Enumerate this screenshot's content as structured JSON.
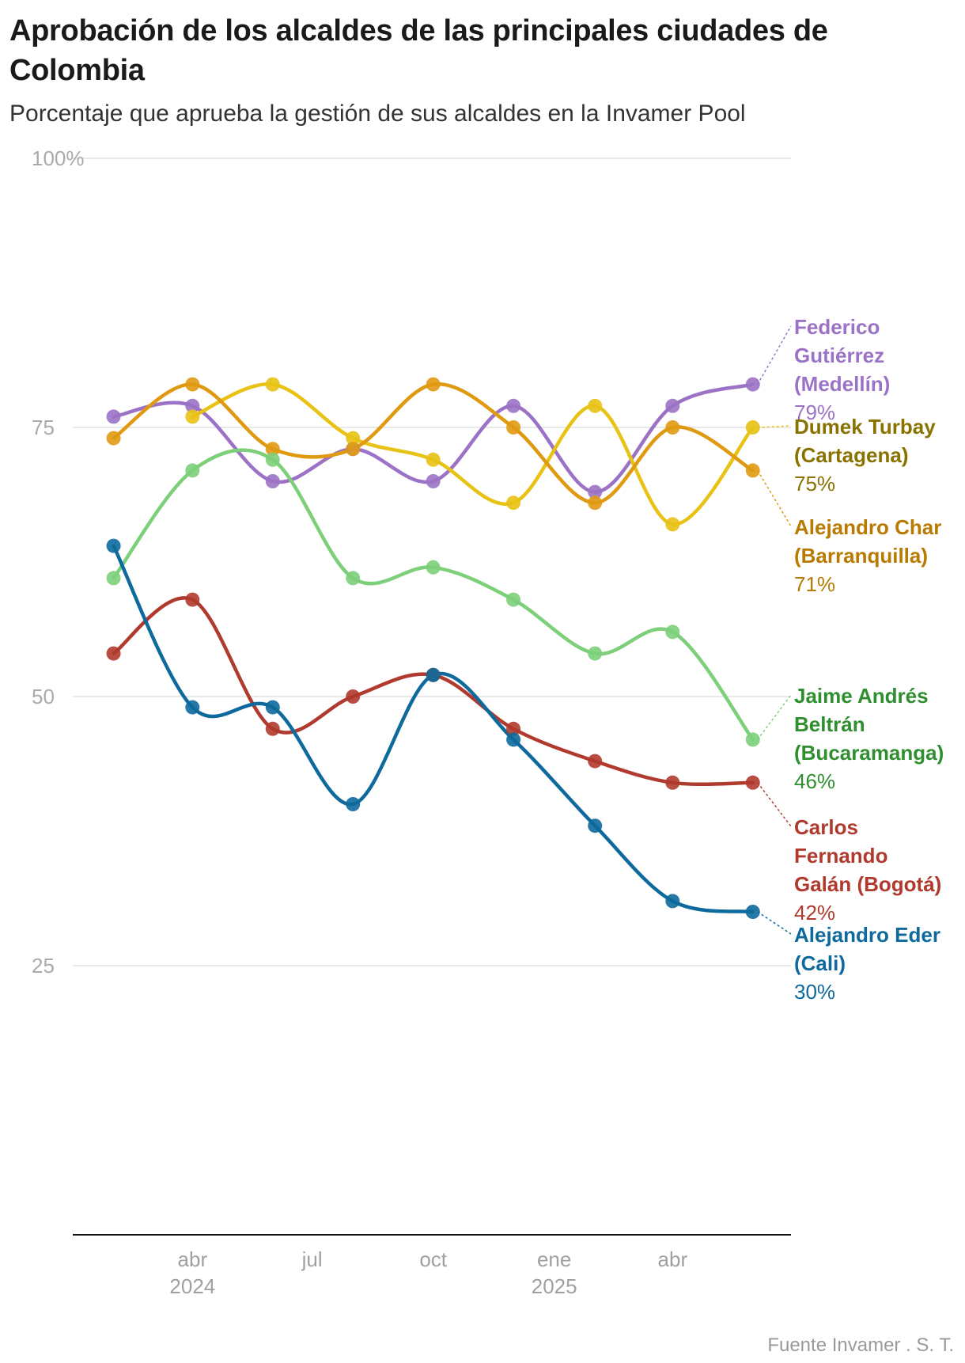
{
  "title": "Aprobación de los alcaldes de las principales ciudades de Colombia",
  "subtitle": "Porcentaje que aprueba la gestión de sus alcaldes en la Invamer Pool",
  "source": "Fuente Invamer . S. T.",
  "chart_data": {
    "type": "line",
    "ylim": [
      0,
      100
    ],
    "y_ticks": [
      {
        "value": 100,
        "label": "100%"
      },
      {
        "value": 75,
        "label": "75"
      },
      {
        "value": 50,
        "label": "50"
      },
      {
        "value": 25,
        "label": "25"
      }
    ],
    "x_ticks": [
      {
        "date": "2024-04-01",
        "label": "abr",
        "sublabel": "2024"
      },
      {
        "date": "2024-07-01",
        "label": "jul",
        "sublabel": ""
      },
      {
        "date": "2024-10-01",
        "label": "oct",
        "sublabel": ""
      },
      {
        "date": "2025-01-01",
        "label": "ene",
        "sublabel": "2025"
      },
      {
        "date": "2025-04-01",
        "label": "abr",
        "sublabel": ""
      }
    ],
    "xlim": [
      "2024-01-01",
      "2025-06-30"
    ],
    "x": [
      "2024-02-01",
      "2024-04-01",
      "2024-06-01",
      "2024-08-01",
      "2024-10-01",
      "2024-12-01",
      "2025-02-01",
      "2025-04-01",
      "2025-06-01"
    ],
    "series": [
      {
        "name": "Federico Gutiérrez (Medellín)",
        "label_lines": [
          "Federico",
          "Gutiérrez",
          "(Medellín)"
        ],
        "value_label": "79%",
        "color": "#9b72c5",
        "text_color": "#9b72c5",
        "values": [
          76,
          77,
          70,
          73,
          70,
          77,
          69,
          77,
          79
        ]
      },
      {
        "name": "Dumek Turbay (Cartagena)",
        "label_lines": [
          "Dumek Turbay",
          "(Cartagena)"
        ],
        "value_label": "75%",
        "color": "#e8c214",
        "text_color": "#8a7200",
        "values": [
          null,
          76,
          79,
          74,
          72,
          68,
          77,
          66,
          75
        ]
      },
      {
        "name": "Alejandro Char (Barranquilla)",
        "label_lines": [
          "Alejandro Char",
          "(Barranquilla)"
        ],
        "value_label": "71%",
        "color": "#e09a12",
        "text_color": "#b87a00",
        "values": [
          74,
          79,
          73,
          73,
          79,
          75,
          68,
          75,
          71
        ]
      },
      {
        "name": "Jaime Andrés Beltrán (Bucaramanga)",
        "label_lines": [
          "Jaime Andrés",
          "Beltrán",
          "(Bucaramanga)"
        ],
        "value_label": "46%",
        "color": "#7dcf7a",
        "text_color": "#2f8f2f",
        "values": [
          61,
          71,
          72,
          61,
          62,
          59,
          54,
          56,
          46
        ]
      },
      {
        "name": "Carlos Fernando Galán (Bogotá)",
        "label_lines": [
          "Carlos",
          "Fernando",
          "Galán (Bogotá)"
        ],
        "value_label": "42%",
        "color": "#b03a2e",
        "text_color": "#b03a2e",
        "values": [
          54,
          59,
          47,
          50,
          52,
          47,
          44,
          42,
          42
        ]
      },
      {
        "name": "Alejandro Eder (Cali)",
        "label_lines": [
          "Alejandro Eder",
          "(Cali)"
        ],
        "value_label": "30%",
        "color": "#0e6a9c",
        "text_color": "#0e6a9c",
        "values": [
          64,
          49,
          49,
          40,
          52,
          46,
          38,
          31,
          30
        ]
      }
    ]
  }
}
